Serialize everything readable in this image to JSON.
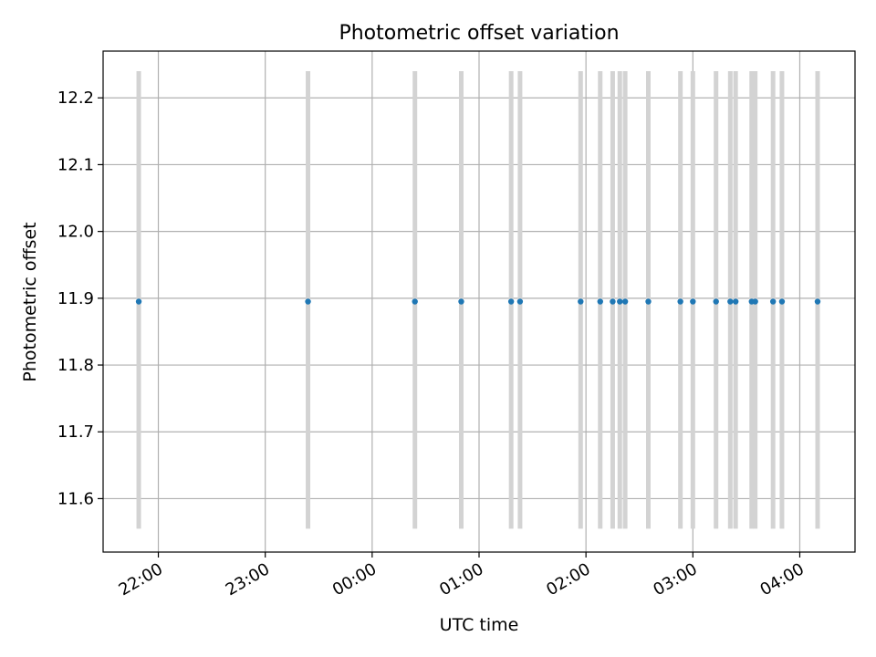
{
  "chart_data": {
    "type": "scatter",
    "title": "Photometric offset variation",
    "xlabel": "UTC time",
    "ylabel": "Photometric offset",
    "x_axis_type": "time",
    "xlim": [
      "21:29",
      "04:31"
    ],
    "ylim": [
      11.52,
      12.27
    ],
    "grid": true,
    "x_ticks": [
      "22:00",
      "23:00",
      "00:00",
      "01:00",
      "02:00",
      "03:00",
      "04:00"
    ],
    "y_ticks": [
      "11.6",
      "11.7",
      "11.8",
      "11.9",
      "12.0",
      "12.1",
      "12.2"
    ],
    "points": [
      {
        "time": "21:49",
        "value": 11.895
      },
      {
        "time": "23:24",
        "value": 11.895
      },
      {
        "time": "00:24",
        "value": 11.895
      },
      {
        "time": "00:50",
        "value": 11.895
      },
      {
        "time": "01:18",
        "value": 11.895
      },
      {
        "time": "01:23",
        "value": 11.895
      },
      {
        "time": "01:57",
        "value": 11.895
      },
      {
        "time": "02:08",
        "value": 11.895
      },
      {
        "time": "02:15",
        "value": 11.895
      },
      {
        "time": "02:19",
        "value": 11.895
      },
      {
        "time": "02:22",
        "value": 11.895
      },
      {
        "time": "02:35",
        "value": 11.895
      },
      {
        "time": "02:53",
        "value": 11.895
      },
      {
        "time": "03:00",
        "value": 11.895
      },
      {
        "time": "03:13",
        "value": 11.895
      },
      {
        "time": "03:21",
        "value": 11.895
      },
      {
        "time": "03:24",
        "value": 11.895
      },
      {
        "time": "03:33",
        "value": 11.895
      },
      {
        "time": "03:35",
        "value": 11.895
      },
      {
        "time": "03:45",
        "value": 11.895
      },
      {
        "time": "03:50",
        "value": 11.895
      },
      {
        "time": "04:10",
        "value": 11.895
      }
    ],
    "vertical_markers": {
      "y_range": [
        11.555,
        12.24
      ],
      "times": [
        "21:49",
        "23:24",
        "00:24",
        "00:50",
        "01:18",
        "01:23",
        "01:57",
        "02:08",
        "02:15",
        "02:19",
        "02:22",
        "02:35",
        "02:53",
        "03:00",
        "03:13",
        "03:21",
        "03:24",
        "03:33",
        "03:35",
        "03:45",
        "03:50",
        "04:10"
      ]
    },
    "colors": {
      "points": "#1f77b4",
      "markers": "#d3d3d3",
      "grid": "#b0b0b0"
    }
  }
}
